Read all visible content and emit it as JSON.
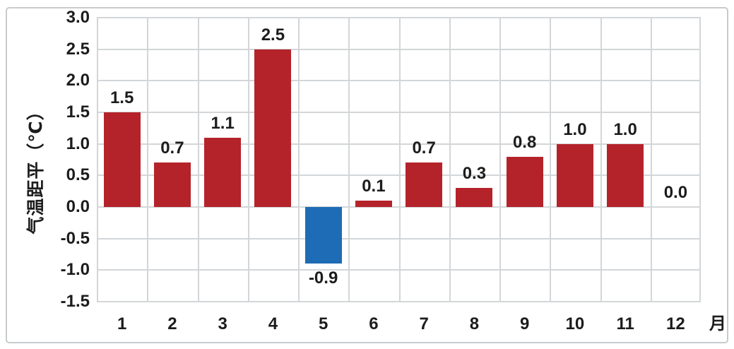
{
  "chart_data": {
    "type": "bar",
    "title": "",
    "categories": [
      "1",
      "2",
      "3",
      "4",
      "5",
      "6",
      "7",
      "8",
      "9",
      "10",
      "11",
      "12"
    ],
    "values": [
      1.5,
      0.7,
      1.1,
      2.5,
      -0.9,
      0.1,
      0.7,
      0.3,
      0.8,
      1.0,
      1.0,
      0.0
    ],
    "data_labels": [
      "1.5",
      "0.7",
      "1.1",
      "2.5",
      "-0.9",
      "0.1",
      "0.7",
      "0.3",
      "0.8",
      "1.0",
      "1.0",
      "0.0"
    ],
    "xlabel": "月",
    "ylabel": "气温距平（℃）",
    "ylim": [
      -1.5,
      3.0
    ],
    "ytick_step": 0.5,
    "yticks": [
      "3.0",
      "2.5",
      "2.0",
      "1.5",
      "1.0",
      "0.5",
      "0.0",
      "-0.5",
      "-1.0",
      "-1.5"
    ],
    "grid": true,
    "legend_position": "none",
    "colors": {
      "positive_bar": "#b5232a",
      "negative_bar": "#1e6cb5",
      "gridline": "#d3d6d8",
      "text": "#1c1c1c",
      "figure_border": "#c7cbcd"
    }
  }
}
